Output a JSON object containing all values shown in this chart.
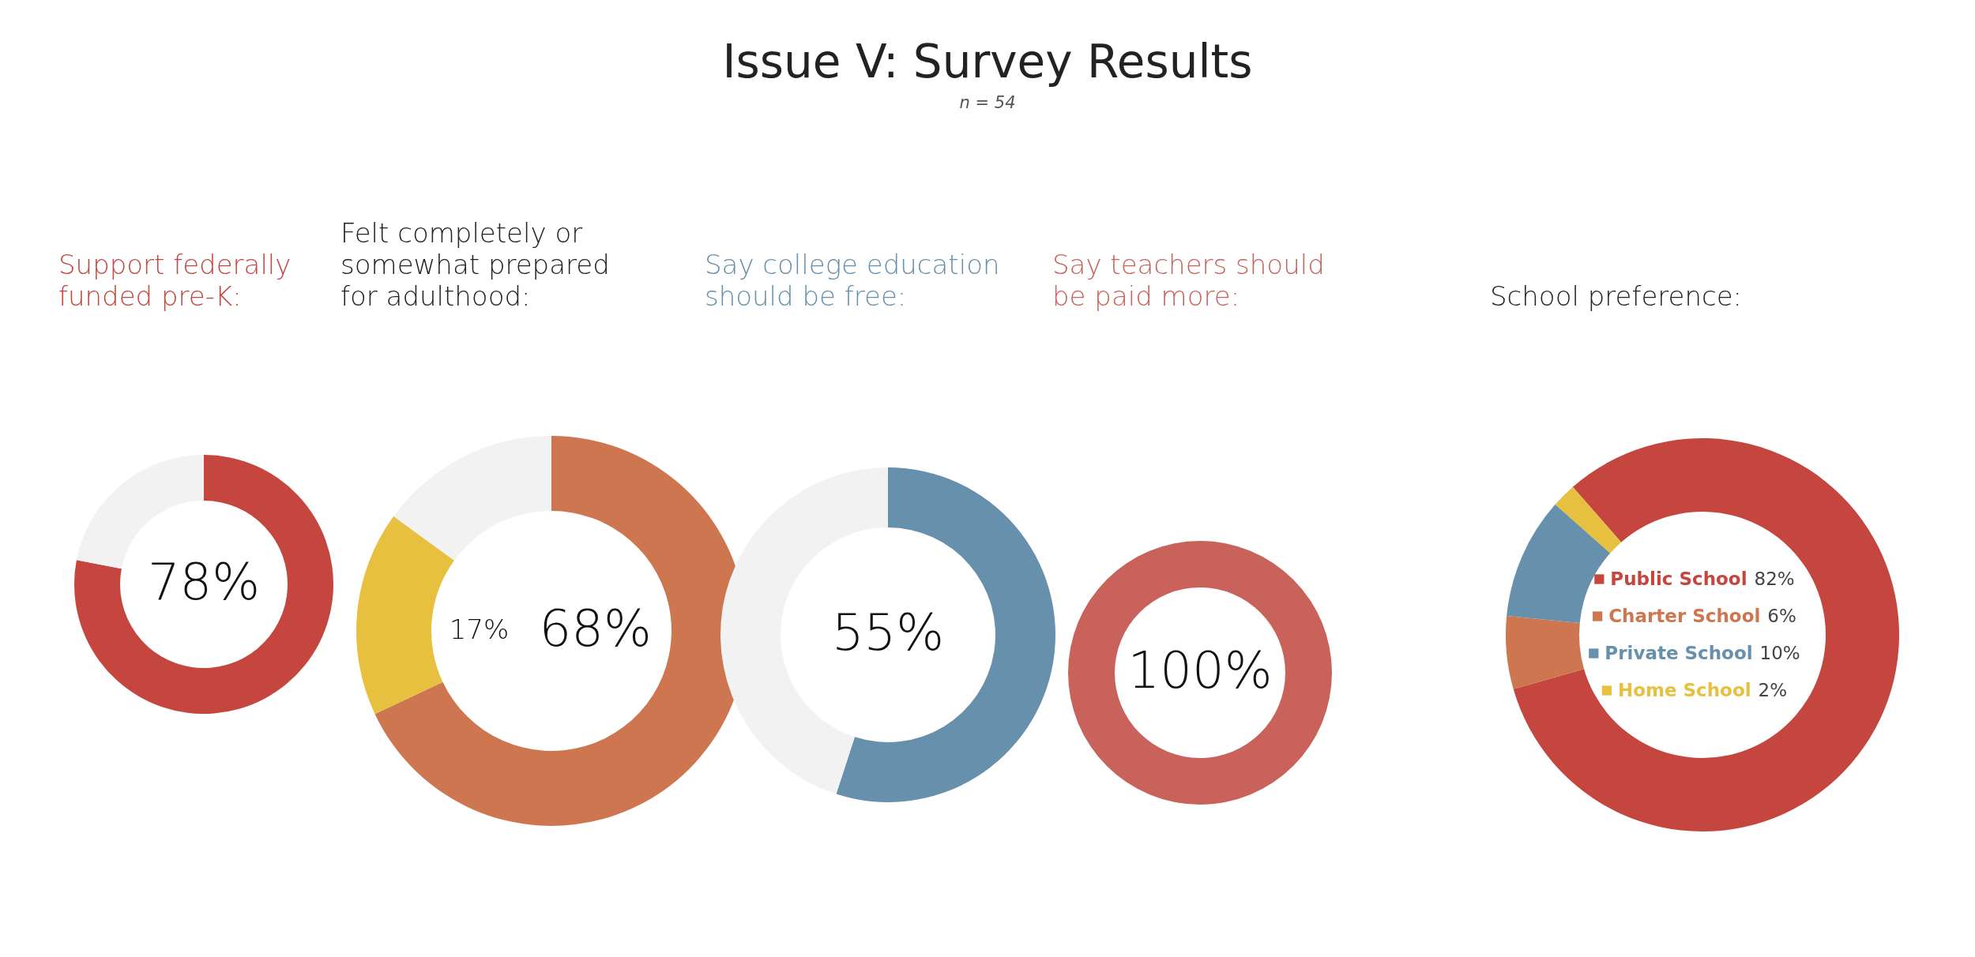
{
  "chart_data": [
    {
      "type": "other",
      "title": "Issue V: Survey Results",
      "subtitle": "n = 54"
    },
    {
      "type": "donut",
      "title": "Support federally funded pre-K:",
      "categories": [
        null,
        null
      ],
      "values": [
        78,
        22
      ],
      "colors": [
        "#c4463e",
        "#f2f2f2"
      ],
      "value_labels": [
        "78%",
        null
      ]
    },
    {
      "type": "donut",
      "title": "Felt completely or somewhat prepared for adulthood:",
      "categories": [
        null,
        null,
        null
      ],
      "values": [
        68,
        17,
        15
      ],
      "colors": [
        "#cd7650",
        "#e8c040",
        "#f2f2f2"
      ],
      "value_labels": [
        "68%",
        "17%",
        null
      ]
    },
    {
      "type": "donut",
      "title": "Say college education should be free:",
      "categories": [
        null,
        null
      ],
      "values": [
        55,
        45
      ],
      "colors": [
        "#6690ab",
        "#f2f2f2"
      ],
      "value_labels": [
        "55%",
        null
      ]
    },
    {
      "type": "donut",
      "title": "Say teachers should be paid more:",
      "categories": [
        null
      ],
      "values": [
        100
      ],
      "colors": [
        "#c8625a"
      ],
      "value_labels": [
        "100%"
      ]
    },
    {
      "type": "donut",
      "title": "School preference:",
      "categories": [
        "Public School",
        "Charter School",
        "Private School",
        "Home School"
      ],
      "values": [
        82,
        6,
        10,
        2
      ],
      "colors": [
        "#c4463e",
        "#cd7650",
        "#6690ab",
        "#e8c040"
      ],
      "value_labels": [
        "82%",
        "6%",
        "10%",
        "2%"
      ],
      "legend": "center"
    }
  ]
}
